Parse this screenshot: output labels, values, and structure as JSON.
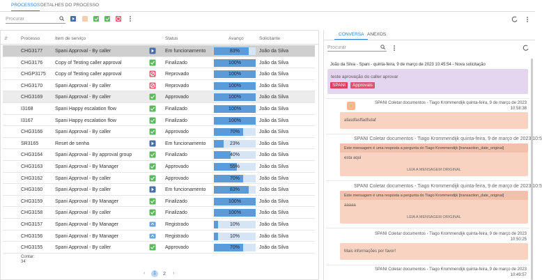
{
  "tabs": [
    "PROCESSOS",
    "DETALHES DO PROCESSO"
  ],
  "search_placeholder": "Procurar",
  "table": {
    "columns": [
      "Processo",
      "Item de serviço",
      "Status",
      "Avanço",
      "Solicitante"
    ],
    "rows": [
      {
        "id": "CHG3177",
        "item": "Spani Approval - By caller",
        "icon": "play",
        "status": "Em funcionamento",
        "progress": 83,
        "progress_label": "83%",
        "requester": "João da Silva"
      },
      {
        "id": "CHG3176",
        "item": "Copy of Testing caller approval",
        "icon": "check",
        "status": "Finalizado",
        "progress": 100,
        "progress_label": "100%",
        "requester": "João da Silva"
      },
      {
        "id": "CHGP3175",
        "item": "Copy of Testing caller approval",
        "icon": "reject",
        "status": "Reprovado",
        "progress": 100,
        "progress_label": "100%",
        "requester": "João da Silva"
      },
      {
        "id": "CHG3170",
        "item": "Spani Approval - By caller",
        "icon": "reject",
        "status": "Reprovado",
        "progress": 100,
        "progress_label": "100%",
        "requester": "João da Silva"
      },
      {
        "id": "CHG3169",
        "item": "Spani Approval - By caller",
        "icon": "check",
        "status": "Approvado",
        "progress": 100,
        "progress_label": "100%",
        "requester": "João da Silva"
      },
      {
        "id": "I3168",
        "item": "Spani Happy escalation flow",
        "icon": "check",
        "status": "Finalizado",
        "progress": 100,
        "progress_label": "100%",
        "requester": "João da Silva"
      },
      {
        "id": "I3167",
        "item": "Spani Happy escalation flow",
        "icon": "check",
        "status": "Finalizado",
        "progress": 100,
        "progress_label": "100%",
        "requester": "João da Silva"
      },
      {
        "id": "CHG3166",
        "item": "Spani Approval - By caller",
        "icon": "check",
        "status": "Approvado",
        "progress": 70,
        "progress_label": "70%",
        "requester": "João da Silva"
      },
      {
        "id": "SR3165",
        "item": "Reset de senha",
        "icon": "play",
        "status": "Em funcionamento",
        "progress": 23,
        "progress_label": "23%",
        "requester": "João da Silva"
      },
      {
        "id": "CHG3164",
        "item": "Spani Approval - By approval group",
        "icon": "check",
        "status": "Finalizado",
        "progress": 40,
        "progress_label": "40%",
        "requester": "João da Silva"
      },
      {
        "id": "CHG3163",
        "item": "Spani Approval - By Manager",
        "icon": "check",
        "status": "Approvado",
        "progress": 55,
        "progress_label": "55%",
        "requester": "João da Silva"
      },
      {
        "id": "CHG3162",
        "item": "Spani Approval - By caller",
        "icon": "check",
        "status": "Approvado",
        "progress": 70,
        "progress_label": "70%",
        "requester": "João da Silva"
      },
      {
        "id": "CHG3160",
        "item": "Spani Approval - By caller",
        "icon": "play",
        "status": "Em funcionamento",
        "progress": 83,
        "progress_label": "83%",
        "requester": "João da Silva"
      },
      {
        "id": "CHG3159",
        "item": "Spani Approval - By Manager",
        "icon": "check",
        "status": "Finalizado",
        "progress": 100,
        "progress_label": "100%",
        "requester": "João da Silva"
      },
      {
        "id": "CHG3158",
        "item": "Spani Approval - By caller",
        "icon": "check",
        "status": "Finalizado",
        "progress": 100,
        "progress_label": "100%",
        "requester": "João da Silva"
      },
      {
        "id": "CHG3157",
        "item": "Spani Approval - By Manager",
        "icon": "registered",
        "status": "Registrado",
        "progress": 10,
        "progress_label": "10%",
        "requester": "João da Silva"
      },
      {
        "id": "CHG3156",
        "item": "Spani Approval - By Manager",
        "icon": "registered",
        "status": "Registrado",
        "progress": 10,
        "progress_label": "10%",
        "requester": "João da Silva"
      },
      {
        "id": "CHG3155",
        "item": "Spani Approval - By caller",
        "icon": "check",
        "status": "Approvado",
        "progress": 70,
        "progress_label": "70%",
        "requester": "João da Silva"
      }
    ]
  },
  "count_label": "Contar:",
  "count": 34,
  "pages": [
    "1",
    "2"
  ],
  "side_tabs": [
    "CONVERSA",
    "ANEXOS"
  ],
  "messages": [
    {
      "header": "João da Silva - Spani - quinta-feira, 9 de março de 2023 10:45:54 - Nova solicitação",
      "text": "teste aprovação do caller aprovar",
      "tags": [
        "SPANI",
        "Approvals"
      ]
    },
    {
      "header": "SPANI Coletar documentos - Tiago Krommendijk quinta-feira, 9 de março de 2023",
      "time": "10:58:38",
      "text": "afasdfasffadfsdaf"
    },
    {
      "header": "SPANI Coletar documentos - Tiago Krommendijk quinta-feira, 9 de março de 2023 10:5",
      "quote": "Este mensagem é uma resposta a pergunta do Tiago Krommendijk [transaction_date_original]",
      "text": "esta aqui",
      "link": "LEIA A MENSAGEM ORIGINAL"
    },
    {
      "header": "SPANI Coletar documentos - Tiago Krommendijk quinta-feira, 9 de março de 2023 10:5",
      "quote": "Este mensagem é uma resposta a pergunta do Tiago Krommendijk [transaction_date_original]",
      "text": "aaaaa",
      "link": "LEIA A MENSAGEM ORIGINAL"
    },
    {
      "header": "SPANI Coletar documentos - Tiago Krommendijk quinta-feira, 9 de março de 2023",
      "time": "10:50:25",
      "text": "Mais informações por favor!"
    },
    {
      "header": "SPANI Coletar documentos - Tiago Krommendijk quinta-feira, 9 de março de 2023",
      "time": "10:49:57"
    }
  ]
}
